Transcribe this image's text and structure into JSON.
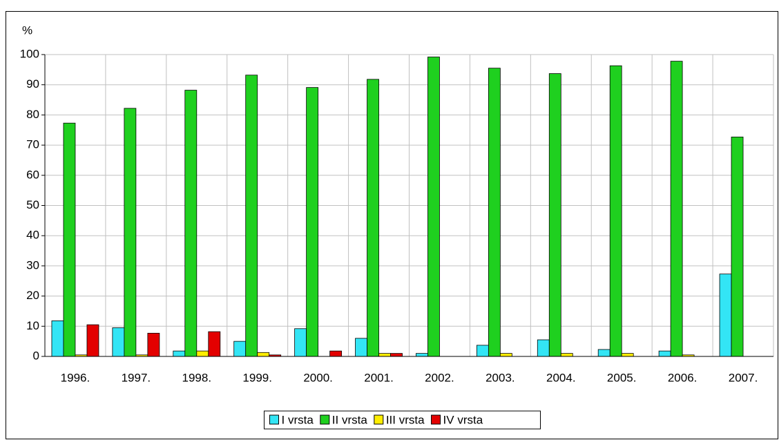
{
  "chart_data": {
    "type": "bar",
    "y_label": "%",
    "categories": [
      "1996.",
      "1997.",
      "1998.",
      "1999.",
      "2000.",
      "2001.",
      "2002.",
      "2003.",
      "2004.",
      "2005.",
      "2006.",
      "2007."
    ],
    "series": [
      {
        "name": "I vrsta",
        "color": "#33e5f5",
        "values": [
          11.8,
          9.5,
          1.8,
          5,
          9.2,
          6,
          1,
          3.7,
          5.5,
          2.3,
          1.8,
          27.3
        ]
      },
      {
        "name": "II vrsta",
        "color": "#1fd01f",
        "values": [
          77.3,
          82.2,
          88.2,
          93.2,
          89.1,
          91.8,
          99.2,
          95.5,
          93.7,
          96.3,
          97.8,
          72.7
        ]
      },
      {
        "name": "III vrsta",
        "color": "#ffee00",
        "values": [
          0.5,
          0.5,
          1.8,
          1.3,
          0,
          1,
          0,
          1,
          1,
          1,
          0.5,
          0
        ]
      },
      {
        "name": "IV vrsta",
        "color": "#e30000",
        "values": [
          10.5,
          7.7,
          8.2,
          0.5,
          1.8,
          1,
          0,
          0,
          0,
          0,
          0,
          0
        ]
      }
    ],
    "ylim": [
      0,
      100
    ],
    "yticks": [
      0,
      10,
      20,
      30,
      40,
      50,
      60,
      70,
      80,
      90,
      100
    ],
    "grid": true,
    "legend": "bottom"
  }
}
